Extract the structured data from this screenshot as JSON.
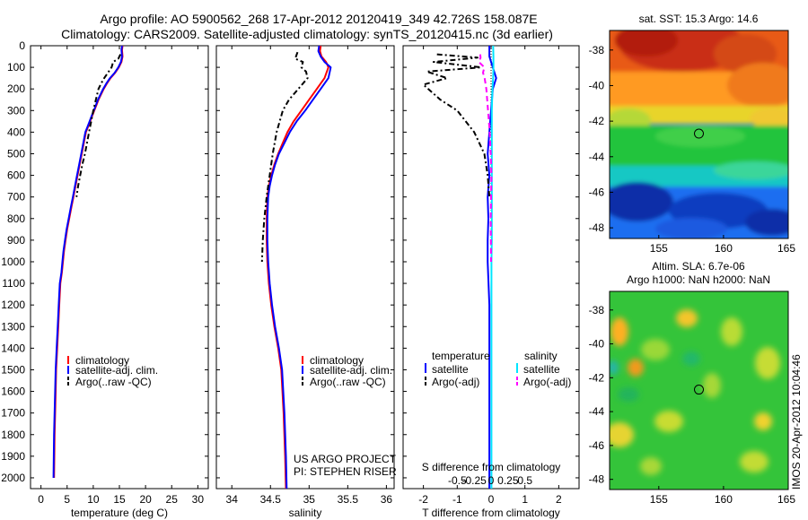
{
  "header": {
    "line1": "Argo profile: AO 5900562_268 17-Apr-2012 20120419_349 42.726S 158.087E",
    "line2": "Climatology: CARS2009. Satellite-adjusted climatology: synTS_20120415.nc (3d earlier)"
  },
  "colors": {
    "clim": "#ff0000",
    "sat": "#0000ff",
    "argo": "#000000",
    "satS": "#00e5ff",
    "argoS": "#ff00ff"
  },
  "chart_data": [
    {
      "type": "line",
      "xlabel": "temperature (deg C)",
      "xlim": [
        -2,
        32
      ],
      "ylim": [
        0,
        2050
      ],
      "xticks": [
        0,
        5,
        10,
        15,
        20,
        25,
        30
      ],
      "yticks": [
        0,
        100,
        200,
        300,
        400,
        500,
        600,
        700,
        800,
        900,
        1000,
        1100,
        1200,
        1300,
        1400,
        1500,
        1600,
        1700,
        1800,
        1900,
        2000
      ],
      "legend": {
        "position": "lower-center",
        "entries": [
          "climatology",
          "satellite-adj. clim.",
          "Argo(..raw -QC)"
        ]
      },
      "series": [
        {
          "name": "climatology",
          "style": "solid",
          "x": [
            15.6,
            15.5,
            15.6,
            15.4,
            14.9,
            14.2,
            13.3,
            12.6,
            12.0,
            11.5,
            11.0,
            10.6,
            10.2,
            9.8,
            9.4,
            9.0,
            8.6,
            8.2,
            7.8,
            7.4,
            7.0,
            6.6,
            6.2,
            5.8,
            5.4,
            5.0,
            4.7,
            4.4,
            4.2,
            4.0,
            3.7,
            3.5,
            3.3,
            3.1,
            2.9,
            2.8,
            2.7,
            2.6,
            2.5
          ],
          "y": [
            0,
            20,
            50,
            75,
            100,
            125,
            150,
            175,
            200,
            225,
            250,
            275,
            300,
            325,
            350,
            375,
            400,
            450,
            500,
            550,
            600,
            650,
            700,
            750,
            800,
            850,
            900,
            950,
            1000,
            1050,
            1100,
            1200,
            1300,
            1400,
            1500,
            1600,
            1700,
            1800,
            2000
          ]
        },
        {
          "name": "satellite-adj. clim.",
          "style": "solid",
          "x": [
            15.5,
            15.4,
            15.5,
            15.3,
            14.8,
            14.1,
            13.2,
            12.5,
            11.9,
            11.4,
            10.9,
            10.5,
            10.1,
            9.7,
            9.3,
            8.9,
            8.5,
            8.1,
            7.7,
            7.3,
            6.9,
            6.5,
            6.1,
            5.7,
            5.3,
            4.9,
            4.6,
            4.3,
            4.1,
            3.9,
            3.6,
            3.4,
            3.2,
            3.0,
            2.8,
            2.7,
            2.6,
            2.5,
            2.4
          ],
          "y": [
            0,
            20,
            50,
            75,
            100,
            125,
            150,
            175,
            200,
            225,
            250,
            275,
            300,
            325,
            350,
            375,
            400,
            450,
            500,
            550,
            600,
            650,
            700,
            750,
            800,
            850,
            900,
            950,
            1000,
            1050,
            1100,
            1200,
            1300,
            1400,
            1500,
            1600,
            1700,
            1800,
            2000
          ]
        },
        {
          "name": "Argo(..raw -QC)",
          "style": "dashdot",
          "x": [
            15.2,
            15.0,
            14.8,
            13.8,
            13.5,
            12.8,
            12.1,
            11.5,
            11.0,
            10.5,
            10.0,
            9.6,
            9.2,
            8.8,
            8.4,
            7.9,
            7.5,
            7.1,
            6.8
          ],
          "y": [
            40,
            50,
            60,
            75,
            100,
            125,
            150,
            175,
            200,
            250,
            300,
            350,
            400,
            450,
            500,
            550,
            600,
            650,
            700
          ]
        }
      ]
    },
    {
      "type": "line",
      "xlabel": "salinity",
      "xlim": [
        33.8,
        36.1
      ],
      "ylim": [
        0,
        2050
      ],
      "xticks": [
        34,
        34.5,
        35,
        35.5,
        36
      ],
      "legend": {
        "position": "lower-center",
        "entries": [
          "climatology",
          "satellite-adj. clim.",
          "Argo(..raw -QC)"
        ]
      },
      "annotation": [
        "US ARGO PROJECT",
        "PI: STEPHEN RISER"
      ],
      "series": [
        {
          "name": "climatology",
          "style": "solid",
          "x": [
            35.15,
            35.14,
            35.16,
            35.22,
            35.25,
            35.2,
            35.1,
            35.0,
            34.9,
            34.8,
            34.72,
            34.66,
            34.6,
            34.55,
            34.51,
            34.48,
            34.46,
            34.45,
            34.45,
            34.46,
            34.48,
            34.51,
            34.55,
            34.6,
            34.64,
            34.67,
            34.69,
            34.7
          ],
          "y": [
            0,
            25,
            50,
            75,
            100,
            150,
            200,
            250,
            300,
            350,
            400,
            450,
            500,
            550,
            600,
            650,
            700,
            800,
            900,
            1000,
            1100,
            1200,
            1300,
            1400,
            1500,
            1700,
            1900,
            2050
          ]
        },
        {
          "name": "satellite-adj. clim.",
          "style": "solid",
          "x": [
            35.13,
            35.12,
            35.15,
            35.2,
            35.28,
            35.25,
            35.15,
            35.05,
            34.95,
            34.84,
            34.75,
            34.68,
            34.61,
            34.56,
            34.52,
            34.49,
            34.47,
            34.46,
            34.46,
            34.47,
            34.49,
            34.52,
            34.56,
            34.61,
            34.65,
            34.68,
            34.7,
            34.71
          ],
          "y": [
            0,
            25,
            50,
            75,
            100,
            150,
            200,
            250,
            300,
            350,
            400,
            450,
            500,
            550,
            600,
            650,
            700,
            800,
            900,
            1000,
            1100,
            1200,
            1300,
            1400,
            1500,
            1700,
            1900,
            2050
          ]
        },
        {
          "name": "Argo(..raw -QC)",
          "style": "dashdot",
          "x": [
            34.85,
            34.82,
            34.92,
            34.9,
            34.96,
            34.98,
            34.86,
            34.74,
            34.66,
            34.58,
            34.53,
            34.49,
            34.45,
            34.42,
            34.4,
            34.39
          ],
          "y": [
            30,
            60,
            75,
            100,
            120,
            150,
            200,
            250,
            300,
            400,
            500,
            600,
            700,
            800,
            900,
            1000
          ]
        }
      ]
    },
    {
      "type": "line",
      "xlabel": "T difference from climatology",
      "xlabel_top": "S difference from climatology",
      "xlim": [
        -2.6,
        2.6
      ],
      "ylim": [
        0,
        2050
      ],
      "xticks": [
        -2,
        -1,
        0,
        1,
        2
      ],
      "xticks_S": [
        -0.5,
        -0.25,
        0,
        0.25,
        0.5
      ],
      "xticklabels_S": [
        "-0.5",
        "-0.25",
        "0",
        "0.25",
        "0.5"
      ],
      "legend": {
        "position": "lower-center",
        "headers": [
          "temperature",
          "salinity"
        ],
        "entries": [
          "satellite",
          "Argo(-adj)",
          "satellite",
          "Argo(-adj)"
        ]
      },
      "series": [
        {
          "name": "satellite",
          "group": "temperature",
          "style": "solid",
          "x": [
            -0.05,
            -0.05,
            0.05,
            0.15,
            0.05,
            0.0,
            -0.05,
            -0.1,
            -0.05,
            -0.1,
            -0.08,
            -0.1,
            -0.1,
            -0.05,
            -0.05,
            -0.05,
            -0.05,
            -0.05
          ],
          "y": [
            0,
            50,
            100,
            150,
            200,
            300,
            400,
            500,
            600,
            700,
            800,
            900,
            1000,
            1200,
            1400,
            1600,
            1800,
            2050
          ]
        },
        {
          "name": "Argo(-adj)",
          "group": "temperature",
          "style": "dashdot",
          "x": [
            -1.6,
            -0.4,
            -1.7,
            -0.3,
            -1.9,
            -1.3,
            -2.0,
            -1.5,
            -1.0,
            -0.5,
            -0.2,
            -0.1,
            -0.05
          ],
          "y": [
            40,
            55,
            75,
            100,
            120,
            150,
            180,
            250,
            300,
            400,
            500,
            600,
            700
          ]
        },
        {
          "name": "satellite",
          "group": "salinity",
          "style": "solid",
          "x": [
            0.06,
            0.07,
            0.07,
            0.06,
            0.04,
            0.02,
            0.02,
            0.02,
            0.02,
            0.02,
            0.02,
            0.02,
            0.01,
            0.01,
            0.01,
            0.01,
            0.01
          ],
          "y": [
            0,
            50,
            100,
            150,
            200,
            300,
            400,
            500,
            600,
            700,
            800,
            900,
            1000,
            1200,
            1400,
            1700,
            2050
          ]
        },
        {
          "name": "Argo(-adj)",
          "group": "salinity",
          "style": "dashed",
          "x": [
            -0.32,
            -0.31,
            -0.36,
            -0.2,
            -0.24,
            -0.19,
            -0.14,
            -0.09,
            -0.04,
            -0.01,
            0.01,
            0.0,
            -0.01,
            0.0
          ],
          "y": [
            40,
            55,
            75,
            100,
            125,
            150,
            200,
            300,
            400,
            500,
            600,
            700,
            800,
            1000
          ]
        }
      ]
    },
    {
      "type": "heatmap",
      "title": "sat. SST: 15.3 Argo: 14.6",
      "xlim": [
        151.2,
        165
      ],
      "ylim": [
        -48.6,
        -36.9
      ],
      "xticks": [
        155,
        160,
        165
      ],
      "yticks": [
        -38,
        -40,
        -42,
        -44,
        -46,
        -48
      ],
      "marker": {
        "lon": 158.1,
        "lat": -42.7
      }
    },
    {
      "type": "heatmap",
      "title": [
        "Altim. SLA: 6.7e-06",
        "Argo h1000: NaN h2000: NaN"
      ],
      "xlim": [
        151.2,
        165
      ],
      "ylim": [
        -48.6,
        -36.9
      ],
      "xticks": [
        155,
        160,
        165
      ],
      "yticks": [
        -38,
        -40,
        -42,
        -44,
        -46,
        -48
      ],
      "marker": {
        "lon": 158.1,
        "lat": -42.7
      }
    }
  ],
  "footer": {
    "stamp": "IMOS 20-Apr-2012 10:04:46"
  }
}
